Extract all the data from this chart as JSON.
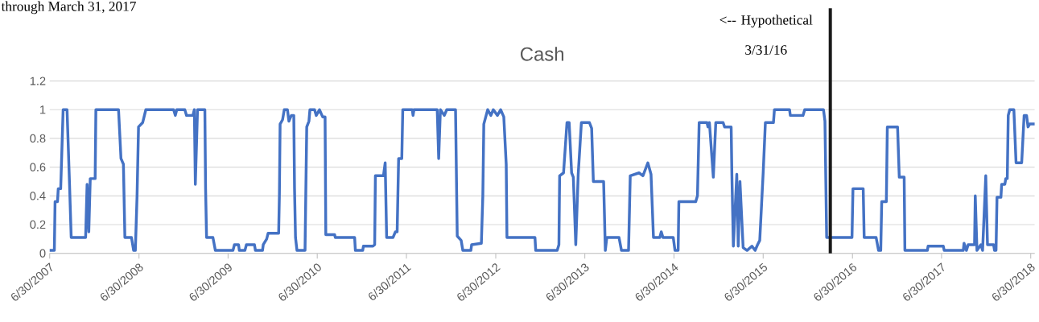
{
  "chart_data": {
    "type": "line",
    "title": "Cash",
    "color": "#4472c4",
    "grid": "y",
    "xlim": [
      "2007-06-30",
      "2018-07-16"
    ],
    "ylim": [
      0,
      1.2
    ],
    "xticks": [
      {
        "value": "2007-06-30",
        "label": "6/30/2007"
      },
      {
        "value": "2008-06-30",
        "label": "6/30/2008"
      },
      {
        "value": "2009-06-30",
        "label": "6/30/2009"
      },
      {
        "value": "2010-06-30",
        "label": "6/30/2010"
      },
      {
        "value": "2011-06-30",
        "label": "6/30/2011"
      },
      {
        "value": "2012-06-30",
        "label": "6/30/2012"
      },
      {
        "value": "2013-06-30",
        "label": "6/30/2013"
      },
      {
        "value": "2014-06-30",
        "label": "6/30/2014"
      },
      {
        "value": "2015-06-30",
        "label": "6/30/2015"
      },
      {
        "value": "2016-06-30",
        "label": "6/30/2016"
      },
      {
        "value": "2017-06-30",
        "label": "6/30/2017"
      },
      {
        "value": "2018-06-30",
        "label": "6/30/2018"
      }
    ],
    "yticks": [
      0,
      0.2,
      0.4,
      0.6,
      0.8,
      1,
      1.2
    ],
    "ref_lines": [
      {
        "axis": "x",
        "value": "2016-03-31",
        "label": "<-- Hypothetical 3/31/16",
        "color": "#1a1a1a"
      }
    ],
    "annotations": [
      "through March 31, 2017"
    ],
    "x": [
      "2007-06-30",
      "2007-07-19",
      "2007-07-22",
      "2007-08-01",
      "2007-08-04",
      "2007-08-14",
      "2007-08-24",
      "2007-09-09",
      "2007-09-19",
      "2007-09-26",
      "2007-11-24",
      "2007-11-30",
      "2007-12-07",
      "2007-12-13",
      "2008-01-02",
      "2008-01-05",
      "2008-04-07",
      "2008-04-17",
      "2008-04-27",
      "2008-05-03",
      "2008-05-30",
      "2008-06-08",
      "2008-06-15",
      "2008-06-22",
      "2008-06-28",
      "2008-07-15",
      "2008-07-28",
      "2008-11-19",
      "2008-11-26",
      "2008-12-02",
      "2009-01-04",
      "2009-01-11",
      "2009-02-06",
      "2009-02-12",
      "2009-02-16",
      "2009-02-25",
      "2009-03-27",
      "2009-03-30",
      "2009-04-03",
      "2009-04-29",
      "2009-05-09",
      "2009-07-20",
      "2009-07-26",
      "2009-08-12",
      "2009-08-15",
      "2009-09-07",
      "2009-09-13",
      "2009-10-16",
      "2009-10-20",
      "2009-11-18",
      "2009-11-21",
      "2009-12-05",
      "2009-12-11",
      "2010-01-23",
      "2010-01-26",
      "2010-01-29",
      "2010-02-08",
      "2010-02-15",
      "2010-02-28",
      "2010-03-06",
      "2010-03-16",
      "2010-03-26",
      "2010-03-29",
      "2010-04-02",
      "2010-04-08",
      "2010-05-11",
      "2010-05-14",
      "2010-05-18",
      "2010-05-27",
      "2010-05-31",
      "2010-06-19",
      "2010-06-26",
      "2010-07-09",
      "2010-07-22",
      "2010-08-01",
      "2010-08-04",
      "2010-09-09",
      "2010-09-12",
      "2010-11-30",
      "2010-12-03",
      "2011-01-02",
      "2011-01-05",
      "2011-02-13",
      "2011-02-20",
      "2011-02-23",
      "2011-03-28",
      "2011-04-04",
      "2011-04-10",
      "2011-05-06",
      "2011-05-16",
      "2011-05-23",
      "2011-05-29",
      "2011-06-11",
      "2011-06-15",
      "2011-07-24",
      "2011-07-27",
      "2011-07-31",
      "2011-11-03",
      "2011-11-09",
      "2011-11-16",
      "2011-12-02",
      "2011-12-12",
      "2012-01-17",
      "2012-01-24",
      "2012-02-09",
      "2012-02-16",
      "2012-03-20",
      "2012-03-23",
      "2012-05-02",
      "2012-05-08",
      "2012-05-12",
      "2012-05-28",
      "2012-06-10",
      "2012-06-20",
      "2012-07-07",
      "2012-07-20",
      "2012-08-02",
      "2012-08-12",
      "2012-08-15",
      "2012-12-08",
      "2012-12-11",
      "2013-03-09",
      "2013-03-16",
      "2013-03-19",
      "2013-04-04",
      "2013-04-18",
      "2013-04-27",
      "2013-05-07",
      "2013-05-14",
      "2013-05-24",
      "2013-06-03",
      "2013-06-16",
      "2013-07-19",
      "2013-07-28",
      "2013-08-04",
      "2013-09-15",
      "2013-09-22",
      "2013-09-28",
      "2013-11-17",
      "2013-11-27",
      "2013-12-26",
      "2014-01-02",
      "2014-02-07",
      "2014-02-23",
      "2014-03-15",
      "2014-03-28",
      "2014-04-07",
      "2014-05-03",
      "2014-05-09",
      "2014-05-16",
      "2014-06-27",
      "2014-07-04",
      "2014-07-17",
      "2014-07-20",
      "2014-09-27",
      "2014-10-04",
      "2014-10-11",
      "2014-11-12",
      "2014-11-16",
      "2014-11-22",
      "2014-12-08",
      "2014-12-18",
      "2015-01-17",
      "2015-01-23",
      "2015-02-19",
      "2015-02-22",
      "2015-02-28",
      "2015-03-14",
      "2015-03-20",
      "2015-03-27",
      "2015-04-09",
      "2015-04-25",
      "2015-05-15",
      "2015-05-28",
      "2015-06-07",
      "2015-06-16",
      "2015-06-30",
      "2015-07-09",
      "2015-08-11",
      "2015-08-15",
      "2015-10-16",
      "2015-10-19",
      "2015-12-10",
      "2015-12-17",
      "2016-03-03",
      "2016-03-09",
      "2016-03-16",
      "2016-06-28",
      "2016-07-02",
      "2016-08-13",
      "2016-08-17",
      "2016-10-05",
      "2016-10-15",
      "2016-10-24",
      "2016-10-28",
      "2016-11-16",
      "2016-11-20",
      "2017-01-01",
      "2017-01-08",
      "2017-01-28",
      "2017-01-31",
      "2017-05-03",
      "2017-05-06",
      "2017-07-07",
      "2017-07-11",
      "2017-09-27",
      "2017-09-30",
      "2017-10-10",
      "2017-10-17",
      "2017-11-12",
      "2017-11-15",
      "2017-11-22",
      "2017-12-08",
      "2017-12-15",
      "2017-12-28",
      "2018-01-04",
      "2018-01-29",
      "2018-02-02",
      "2018-02-08",
      "2018-02-12",
      "2018-02-28",
      "2018-03-03",
      "2018-03-16",
      "2018-03-20",
      "2018-03-26",
      "2018-03-30",
      "2018-04-05",
      "2018-04-22",
      "2018-05-01",
      "2018-05-24",
      "2018-06-03",
      "2018-06-13",
      "2018-06-19",
      "2018-06-26",
      "2018-07-16"
    ],
    "values": [
      0.02,
      0.02,
      0.36,
      0.36,
      0.45,
      0.45,
      1.0,
      1.0,
      0.49,
      0.11,
      0.11,
      0.48,
      0.15,
      0.52,
      0.52,
      1.0,
      1.0,
      0.66,
      0.62,
      0.11,
      0.11,
      0.02,
      0.02,
      0.4,
      0.88,
      0.91,
      1.0,
      1.0,
      0.96,
      1.0,
      1.0,
      0.96,
      0.96,
      1.0,
      0.48,
      1.0,
      1.0,
      0.45,
      0.11,
      0.11,
      0.02,
      0.02,
      0.06,
      0.06,
      0.02,
      0.02,
      0.06,
      0.06,
      0.02,
      0.02,
      0.06,
      0.1,
      0.14,
      0.14,
      0.4,
      0.9,
      0.93,
      1.0,
      1.0,
      0.92,
      0.96,
      0.96,
      0.45,
      0.11,
      0.02,
      0.02,
      0.4,
      0.88,
      0.92,
      1.0,
      1.0,
      0.96,
      1.0,
      0.95,
      0.95,
      0.13,
      0.13,
      0.11,
      0.11,
      0.02,
      0.02,
      0.05,
      0.05,
      0.06,
      0.54,
      0.54,
      0.63,
      0.11,
      0.11,
      0.15,
      0.15,
      0.66,
      0.66,
      1.0,
      1.0,
      0.96,
      1.0,
      1.0,
      0.66,
      1.0,
      0.96,
      1.0,
      1.0,
      0.12,
      0.09,
      0.02,
      0.02,
      0.06,
      0.07,
      0.4,
      0.9,
      1.0,
      0.96,
      1.0,
      0.96,
      1.0,
      0.95,
      0.62,
      0.11,
      0.11,
      0.02,
      0.02,
      0.06,
      0.54,
      0.56,
      0.91,
      0.91,
      0.56,
      0.53,
      0.06,
      0.55,
      0.91,
      0.91,
      0.87,
      0.5,
      0.5,
      0.02,
      0.11,
      0.11,
      0.02,
      0.02,
      0.54,
      0.56,
      0.54,
      0.63,
      0.55,
      0.11,
      0.11,
      0.15,
      0.11,
      0.11,
      0.02,
      0.02,
      0.36,
      0.36,
      0.4,
      0.91,
      0.91,
      0.88,
      0.91,
      0.53,
      0.91,
      0.91,
      0.88,
      0.88,
      0.54,
      0.05,
      0.55,
      0.05,
      0.5,
      0.04,
      0.02,
      0.05,
      0.02,
      0.06,
      0.09,
      0.56,
      0.91,
      0.91,
      1.0,
      1.0,
      0.96,
      0.96,
      1.0,
      1.0,
      0.92,
      0.11,
      0.11,
      0.45,
      0.45,
      0.11,
      0.11,
      0.02,
      0.02,
      0.36,
      0.36,
      0.88,
      0.88,
      0.53,
      0.53,
      0.02,
      0.02,
      0.05,
      0.05,
      0.02,
      0.02,
      0.07,
      0.02,
      0.06,
      0.06,
      0.4,
      0.02,
      0.06,
      0.02,
      0.54,
      0.06,
      0.06,
      0.02,
      0.02,
      0.39,
      0.39,
      0.48,
      0.48,
      0.52,
      0.52,
      0.96,
      1.0,
      1.0,
      0.63,
      0.63,
      0.96,
      0.96,
      0.88,
      0.9,
      0.9
    ]
  }
}
